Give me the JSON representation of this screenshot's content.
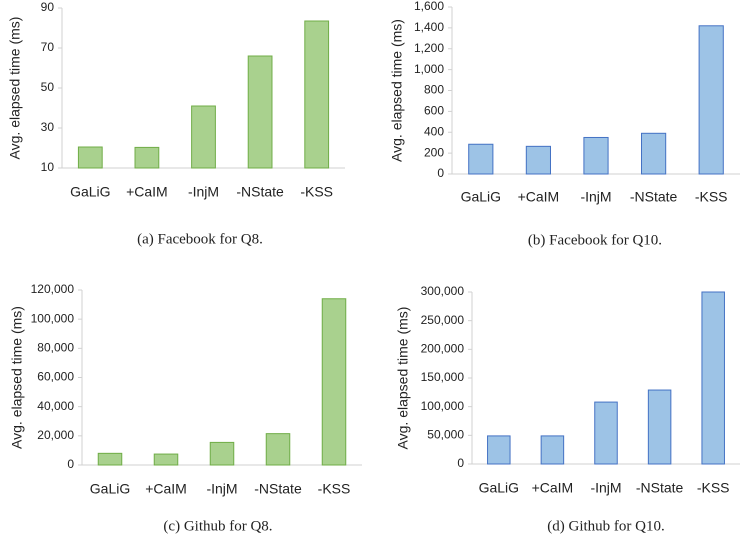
{
  "chart_data": [
    {
      "type": "bar",
      "caption": "(a) Facebook for Q8.",
      "y_label": "Avg. elapsed time (ms)",
      "categories": [
        "GaLiG",
        "+CaIM",
        "-InjM",
        "-NState",
        "-KSS"
      ],
      "values": [
        20.5,
        20.3,
        41,
        66,
        83.5
      ],
      "color": "#a9d18e",
      "edge_color": "#70ad47",
      "ylim": [
        10,
        90
      ],
      "yticks": [
        10,
        30,
        50,
        70,
        90
      ]
    },
    {
      "type": "bar",
      "caption": "(b) Facebook for Q10.",
      "y_label": "Avg. elapsed time (ms)",
      "categories": [
        "GaLiG",
        "+CaIM",
        "-InjM",
        "-NState",
        "-KSS"
      ],
      "values": [
        285,
        265,
        350,
        390,
        1420
      ],
      "color": "#9dc3e6",
      "edge_color": "#4472c4",
      "ylim": [
        0,
        1600
      ],
      "yticks": [
        0,
        200,
        400,
        600,
        800,
        {
          "value": 1000,
          "label": "1,000"
        },
        {
          "value": 1200,
          "label": "1,200"
        },
        {
          "value": 1400,
          "label": "1,400"
        },
        {
          "value": 1600,
          "label": "1,600"
        }
      ]
    },
    {
      "type": "bar",
      "caption": "(c) Github for Q8.",
      "y_label": "Avg. elapsed time (ms)",
      "categories": [
        "GaLiG",
        "+CaIM",
        "-InjM",
        "-NState",
        "-KSS"
      ],
      "values": [
        8000,
        7500,
        15500,
        21500,
        114000
      ],
      "color": "#a9d18e",
      "edge_color": "#70ad47",
      "ylim": [
        0,
        120000
      ],
      "yticks": [
        0,
        {
          "value": 20000,
          "label": "20,000"
        },
        {
          "value": 40000,
          "label": "40,000"
        },
        {
          "value": 60000,
          "label": "60,000"
        },
        {
          "value": 80000,
          "label": "80,000"
        },
        {
          "value": 100000,
          "label": "100,000"
        },
        {
          "value": 120000,
          "label": "120,000"
        }
      ]
    },
    {
      "type": "bar",
      "caption": "(d) Github for Q10.",
      "y_label": "Avg. elapsed time (ms)",
      "categories": [
        "GaLiG",
        "+CaIM",
        "-InjM",
        "-NState",
        "-KSS"
      ],
      "values": [
        49000,
        49000,
        108000,
        129000,
        300000
      ],
      "color": "#9dc3e6",
      "edge_color": "#4472c4",
      "ylim": [
        0,
        300000
      ],
      "yticks": [
        0,
        {
          "value": 50000,
          "label": "50,000"
        },
        {
          "value": 100000,
          "label": "100,000"
        },
        {
          "value": 150000,
          "label": "150,000"
        },
        {
          "value": 200000,
          "label": "200,000"
        },
        {
          "value": 250000,
          "label": "250,000"
        },
        {
          "value": 300000,
          "label": "300,000"
        }
      ]
    }
  ]
}
